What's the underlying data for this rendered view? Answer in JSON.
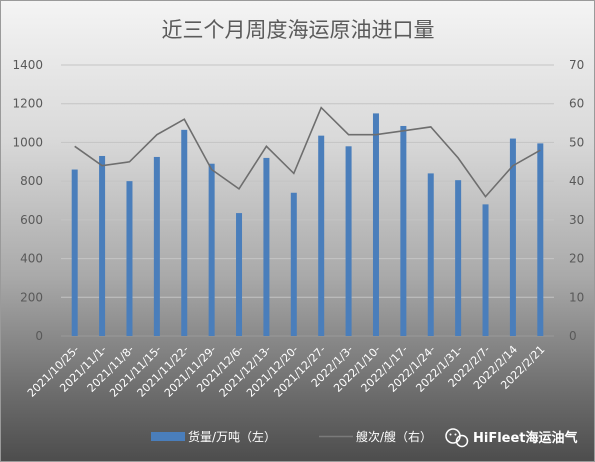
{
  "chart_data": {
    "type": "bar",
    "title": "近三个月周度海运原油进口量",
    "categories": [
      "2021/10/25-",
      "2021/11/1-",
      "2021/11/8-",
      "2021/11/15-",
      "2021/11/22-",
      "2021/11/29-",
      "2021/12/6-",
      "2021/12/13-",
      "2021/12/20-",
      "2021/12/27-",
      "2022/1/3-",
      "2022/1/10-",
      "2022/1/17-",
      "2022/1/24-",
      "2022/1/31-",
      "2022/2/7-",
      "2022/2/14",
      "2022/2/21"
    ],
    "series": [
      {
        "name": "货量/万吨（左）",
        "type": "bar",
        "axis": "left",
        "color": "#4a7ebb",
        "values": [
          860,
          930,
          800,
          925,
          1065,
          890,
          635,
          920,
          740,
          1035,
          980,
          1150,
          1085,
          840,
          805,
          680,
          1020,
          995
        ]
      },
      {
        "name": "艘次/艘（右）",
        "type": "line",
        "axis": "right",
        "color": "#6e6e6e",
        "values": [
          49,
          44,
          45,
          52,
          56,
          43,
          38,
          49,
          42,
          59,
          52,
          52,
          53,
          54,
          46,
          36,
          44,
          48
        ]
      }
    ],
    "ylim_left": [
      0,
      1400
    ],
    "yticks_left": [
      0,
      200,
      400,
      600,
      800,
      1000,
      1200,
      1400
    ],
    "ylim_right": [
      0,
      70
    ],
    "yticks_right": [
      0,
      10,
      20,
      30,
      40,
      50,
      60,
      70
    ],
    "grid": true,
    "legend_position": "bottom"
  },
  "watermark": {
    "text": "HiFleet海运油气",
    "icon": "wechat-icon"
  }
}
